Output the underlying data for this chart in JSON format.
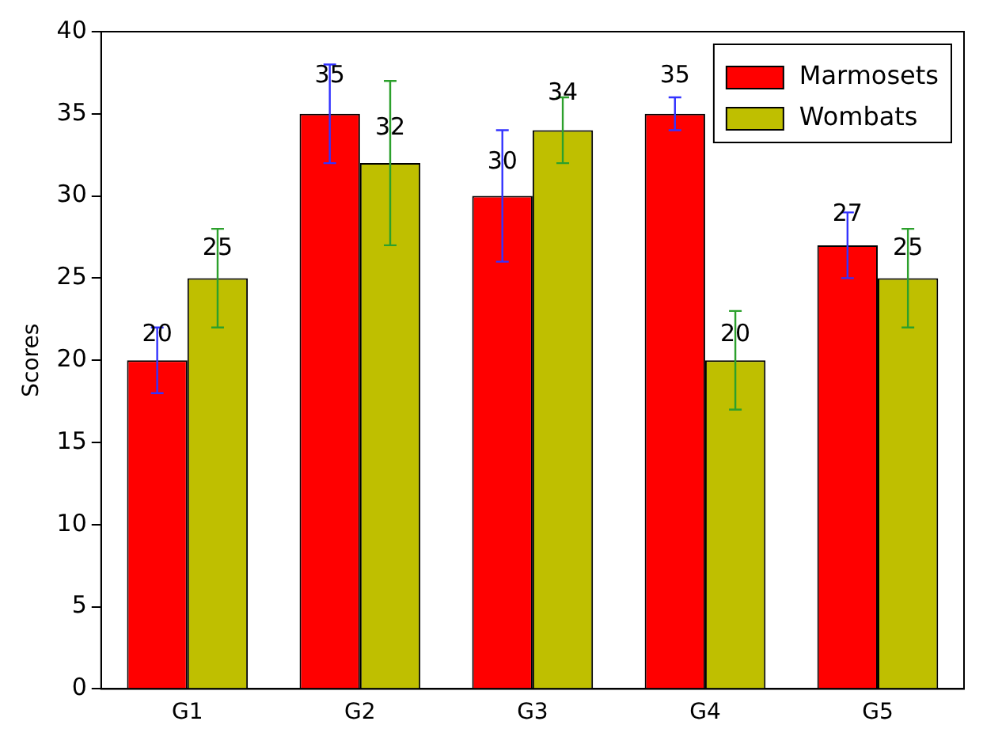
{
  "chart_data": {
    "type": "bar",
    "ylabel": "Scores",
    "categories": [
      "G1",
      "G2",
      "G3",
      "G4",
      "G5"
    ],
    "series": [
      {
        "name": "Marmosets",
        "color": "#ff0000",
        "values": [
          20,
          35,
          30,
          35,
          27
        ],
        "errors": [
          2,
          3,
          4,
          1,
          2
        ]
      },
      {
        "name": "Wombats",
        "color": "#bfbf00",
        "values": [
          25,
          32,
          34,
          20,
          25
        ],
        "errors": [
          3,
          5,
          2,
          3,
          3
        ]
      }
    ],
    "ylim": [
      0,
      40
    ],
    "yticks": [
      0,
      5,
      10,
      15,
      20,
      25,
      30,
      35,
      40
    ],
    "grid": false,
    "legend": "top right",
    "data_labels": true
  }
}
